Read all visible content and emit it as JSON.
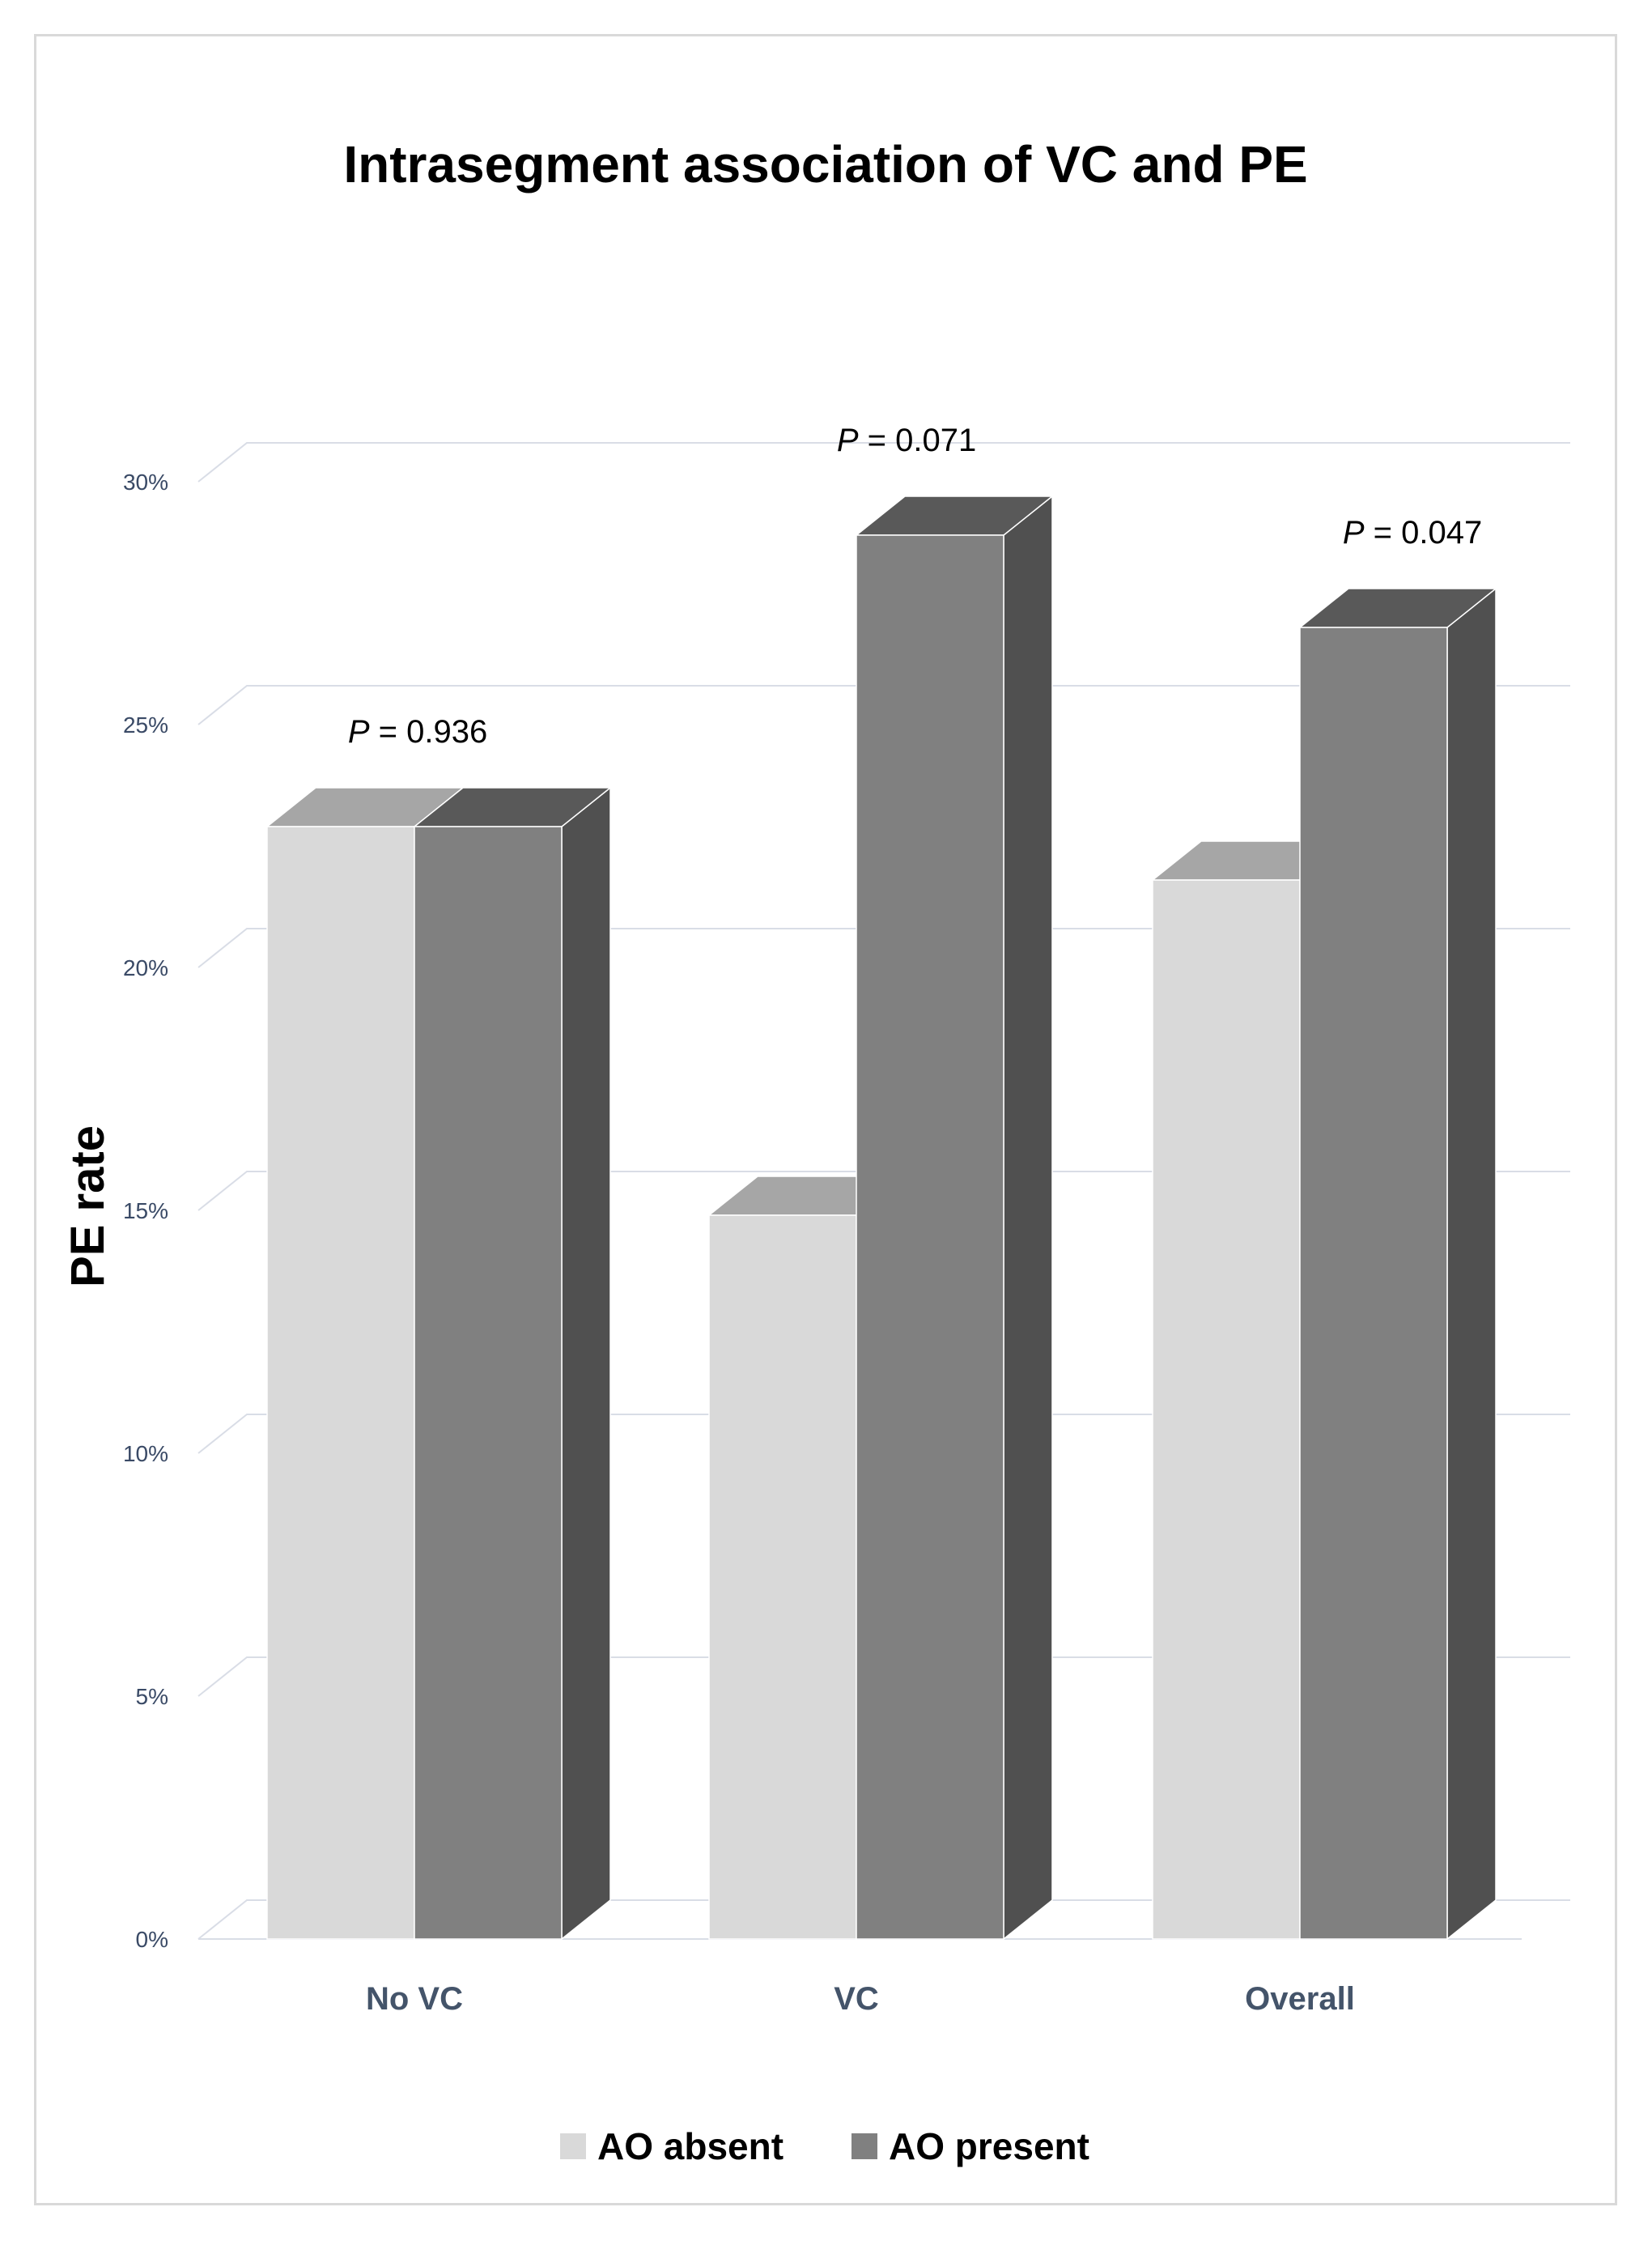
{
  "chart_data": {
    "type": "bar",
    "title": "Intrasegment association of VC and PE",
    "xlabel": "",
    "ylabel": "PE rate",
    "categories": [
      "No VC",
      "VC",
      "Overall"
    ],
    "series": [
      {
        "name": "AO absent",
        "values": [
          22.9,
          14.9,
          21.8
        ],
        "color": "#d9d9d9"
      },
      {
        "name": "AO present",
        "values": [
          22.9,
          28.9,
          27.0
        ],
        "color": "#808080"
      }
    ],
    "ylim": [
      0,
      30
    ],
    "yticks": [
      0,
      5,
      10,
      15,
      20,
      25,
      30
    ],
    "ytick_labels": [
      "0%",
      "5%",
      "10%",
      "15%",
      "20%",
      "25%",
      "30%"
    ],
    "annotations": [
      {
        "category": "No VC",
        "symbol": "P",
        "text": " = 0.936"
      },
      {
        "category": "VC",
        "symbol": "P",
        "text": " = 0.071"
      },
      {
        "category": "Overall",
        "symbol": "P",
        "text": " = 0.047"
      }
    ],
    "grid": true,
    "legend": "bottom",
    "style": "3d-clustered-column"
  }
}
